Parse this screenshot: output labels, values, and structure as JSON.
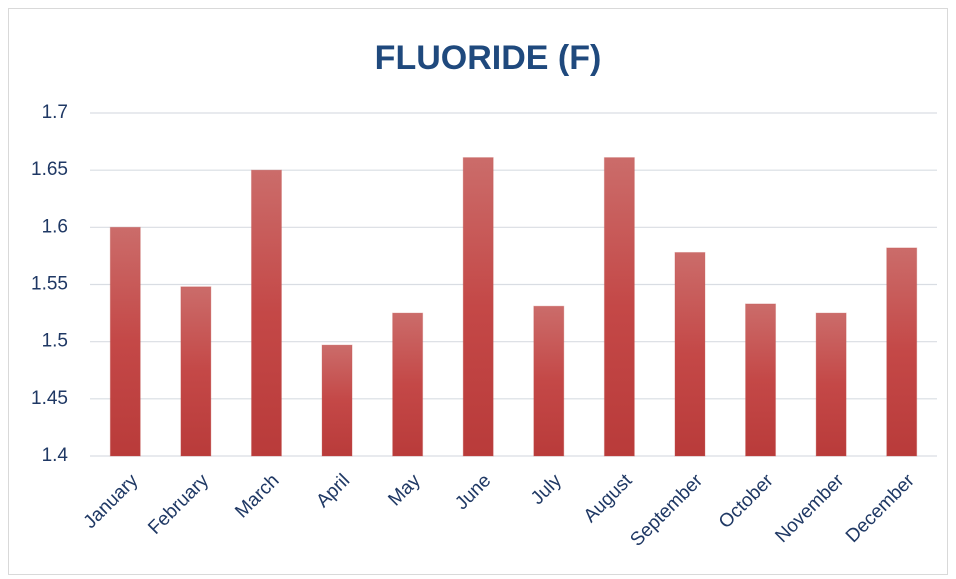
{
  "chart_data": {
    "type": "bar",
    "title": "FLUORIDE (F)",
    "categories": [
      "January",
      "February",
      "March",
      "April",
      "May",
      "June",
      "July",
      "August",
      "September",
      "October",
      "November",
      "December"
    ],
    "values": [
      1.6,
      1.548,
      1.65,
      1.497,
      1.525,
      1.661,
      1.531,
      1.661,
      1.578,
      1.533,
      1.525,
      1.582
    ],
    "color": "#c0504d",
    "ylim": [
      1.4,
      1.7
    ],
    "yticks": [
      1.4,
      1.45,
      1.5,
      1.55,
      1.6,
      1.65,
      1.7
    ],
    "grid": true
  }
}
